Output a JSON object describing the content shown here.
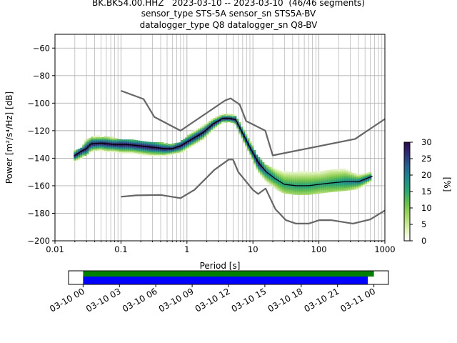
{
  "title_lines": [
    "BK.BK54.00.HHZ   2023-03-10 -- 2023-03-10  (46/46 segments)",
    "sensor_type STS-5A sensor_sn STS5A-BV",
    "datalogger_type Q8 datalogger_sn Q8-BV"
  ],
  "chart_data": {
    "type": "heatmap",
    "xlabel": "Period [s]",
    "ylabel": "Power [m²/s⁴/Hz] [dB]",
    "x_scale": "log",
    "xlim": [
      0.01,
      1000
    ],
    "ylim": [
      -200,
      -50
    ],
    "x_ticks": [
      {
        "value": 0.01,
        "label": "0.01"
      },
      {
        "value": 0.1,
        "label": "0.1"
      },
      {
        "value": 1,
        "label": "1"
      },
      {
        "value": 10,
        "label": "10"
      },
      {
        "value": 100,
        "label": "100"
      },
      {
        "value": 1000,
        "label": "1000"
      }
    ],
    "y_ticks": [
      {
        "value": -60,
        "label": "−60"
      },
      {
        "value": -80,
        "label": "−80"
      },
      {
        "value": -100,
        "label": "−100"
      },
      {
        "value": -120,
        "label": "−120"
      },
      {
        "value": -140,
        "label": "−140"
      },
      {
        "value": -160,
        "label": "−160"
      },
      {
        "value": -180,
        "label": "−180"
      },
      {
        "value": -200,
        "label": "−200"
      }
    ],
    "grid": true,
    "colorbar": {
      "label": "[%]",
      "range": [
        0,
        30
      ],
      "ticks": [
        {
          "value": 0,
          "label": "0"
        },
        {
          "value": 5,
          "label": "5"
        },
        {
          "value": 10,
          "label": "10"
        },
        {
          "value": 15,
          "label": "15"
        },
        {
          "value": 20,
          "label": "20"
        },
        {
          "value": 25,
          "label": "25"
        },
        {
          "value": 30,
          "label": "30"
        }
      ],
      "colormap": [
        "#ffffff",
        "#d9efb0",
        "#a8d86a",
        "#6cc04a",
        "#2ea56e",
        "#1e8a8a",
        "#26638c",
        "#302f78",
        "#2a0a4a"
      ]
    },
    "noise_model_high": [
      [
        0.1,
        -91
      ],
      [
        0.22,
        -97
      ],
      [
        0.32,
        -110
      ],
      [
        0.8,
        -120
      ],
      [
        3.8,
        -98
      ],
      [
        4.6,
        -96.5
      ],
      [
        6.3,
        -101
      ],
      [
        7.9,
        -113
      ],
      [
        15.4,
        -120
      ],
      [
        20,
        -138
      ],
      [
        354.8,
        -126
      ],
      [
        1000,
        -111.5
      ]
    ],
    "noise_model_low": [
      [
        0.1,
        -168
      ],
      [
        0.17,
        -167
      ],
      [
        0.4,
        -166.7
      ],
      [
        0.8,
        -169
      ],
      [
        1.3,
        -163
      ],
      [
        2.6,
        -148.5
      ],
      [
        4.3,
        -141
      ],
      [
        5.0,
        -141
      ],
      [
        6.0,
        -150
      ],
      [
        10,
        -163
      ],
      [
        12,
        -166
      ],
      [
        15.6,
        -162
      ],
      [
        21.9,
        -177
      ],
      [
        31.6,
        -185
      ],
      [
        45,
        -187.5
      ],
      [
        70,
        -187.5
      ],
      [
        101,
        -185
      ],
      [
        154,
        -185
      ],
      [
        328,
        -187.5
      ],
      [
        600,
        -184.5
      ],
      [
        1000,
        -178
      ]
    ],
    "mean_psd": [
      [
        0.02,
        -138
      ],
      [
        0.025,
        -135
      ],
      [
        0.03,
        -133
      ],
      [
        0.035,
        -129.5
      ],
      [
        0.05,
        -129
      ],
      [
        0.08,
        -130
      ],
      [
        0.12,
        -130
      ],
      [
        0.2,
        -131
      ],
      [
        0.3,
        -132
      ],
      [
        0.45,
        -133
      ],
      [
        0.6,
        -133
      ],
      [
        0.8,
        -131
      ],
      [
        1.2,
        -126
      ],
      [
        1.8,
        -121
      ],
      [
        2.5,
        -115
      ],
      [
        3.5,
        -111
      ],
      [
        4.5,
        -111
      ],
      [
        5.5,
        -112
      ],
      [
        7,
        -122
      ],
      [
        9,
        -132
      ],
      [
        12,
        -143
      ],
      [
        16,
        -150
      ],
      [
        22,
        -155
      ],
      [
        30,
        -159
      ],
      [
        45,
        -160
      ],
      [
        70,
        -160
      ],
      [
        100,
        -159
      ],
      [
        150,
        -158
      ],
      [
        250,
        -157
      ],
      [
        400,
        -157
      ],
      [
        650,
        -153
      ]
    ],
    "density_band": [
      [
        0.02,
        -142,
        -135,
        1
      ],
      [
        0.025,
        -140,
        -133,
        1
      ],
      [
        0.03,
        -137,
        -126,
        1
      ],
      [
        0.04,
        -134,
        -124,
        1
      ],
      [
        0.05,
        -134,
        -124,
        1
      ],
      [
        0.06,
        -135,
        -125,
        1
      ],
      [
        0.08,
        -135,
        -125,
        1
      ],
      [
        0.1,
        -136,
        -126,
        1
      ],
      [
        0.15,
        -136,
        -127,
        1
      ],
      [
        0.2,
        -137,
        -128,
        1
      ],
      [
        0.3,
        -138,
        -128,
        1
      ],
      [
        0.45,
        -138,
        -129,
        1
      ],
      [
        0.6,
        -137,
        -130,
        1
      ],
      [
        0.8,
        -136,
        -128,
        1
      ],
      [
        1.2,
        -131,
        -121,
        1
      ],
      [
        1.8,
        -126,
        -116,
        1
      ],
      [
        2.5,
        -119,
        -111,
        1
      ],
      [
        3.5,
        -114,
        -108,
        1
      ],
      [
        4.5,
        -113,
        -108,
        1
      ],
      [
        5.5,
        -116,
        -109,
        1
      ],
      [
        7,
        -127,
        -118,
        1
      ],
      [
        9,
        -137,
        -127,
        1
      ],
      [
        12,
        -150,
        -139,
        1
      ],
      [
        16,
        -157,
        -145,
        0.7
      ],
      [
        22,
        -162,
        -148,
        0.6
      ],
      [
        30,
        -165,
        -150,
        0.5
      ],
      [
        45,
        -166,
        -150,
        0.5
      ],
      [
        70,
        -166,
        -150,
        0.5
      ],
      [
        100,
        -165,
        -150,
        0.5
      ],
      [
        150,
        -164,
        -148,
        0.5
      ],
      [
        250,
        -163,
        -148,
        0.6
      ],
      [
        400,
        -162,
        -152,
        0.7
      ],
      [
        650,
        -156,
        -150,
        0.9
      ]
    ],
    "x_note": "",
    "colors": {
      "noise_model": "#666666",
      "mean_line": "#000000",
      "grid": "#b0b0b0"
    }
  },
  "timeline": {
    "tick_labels": [
      "03-10 00",
      "03-10 03",
      "03-10 06",
      "03-10 09",
      "03-10 12",
      "03-10 15",
      "03-10 18",
      "03-10 21",
      "03-11 00"
    ],
    "bars": [
      {
        "name": "data_available",
        "start_hour": 0,
        "end_hour": 24.0,
        "color": "#008000"
      },
      {
        "name": "psd_used",
        "start_hour": 0,
        "end_hour": 23.5,
        "color": "#0000ff"
      }
    ],
    "range_hours": [
      -1.2,
      25.2
    ]
  }
}
